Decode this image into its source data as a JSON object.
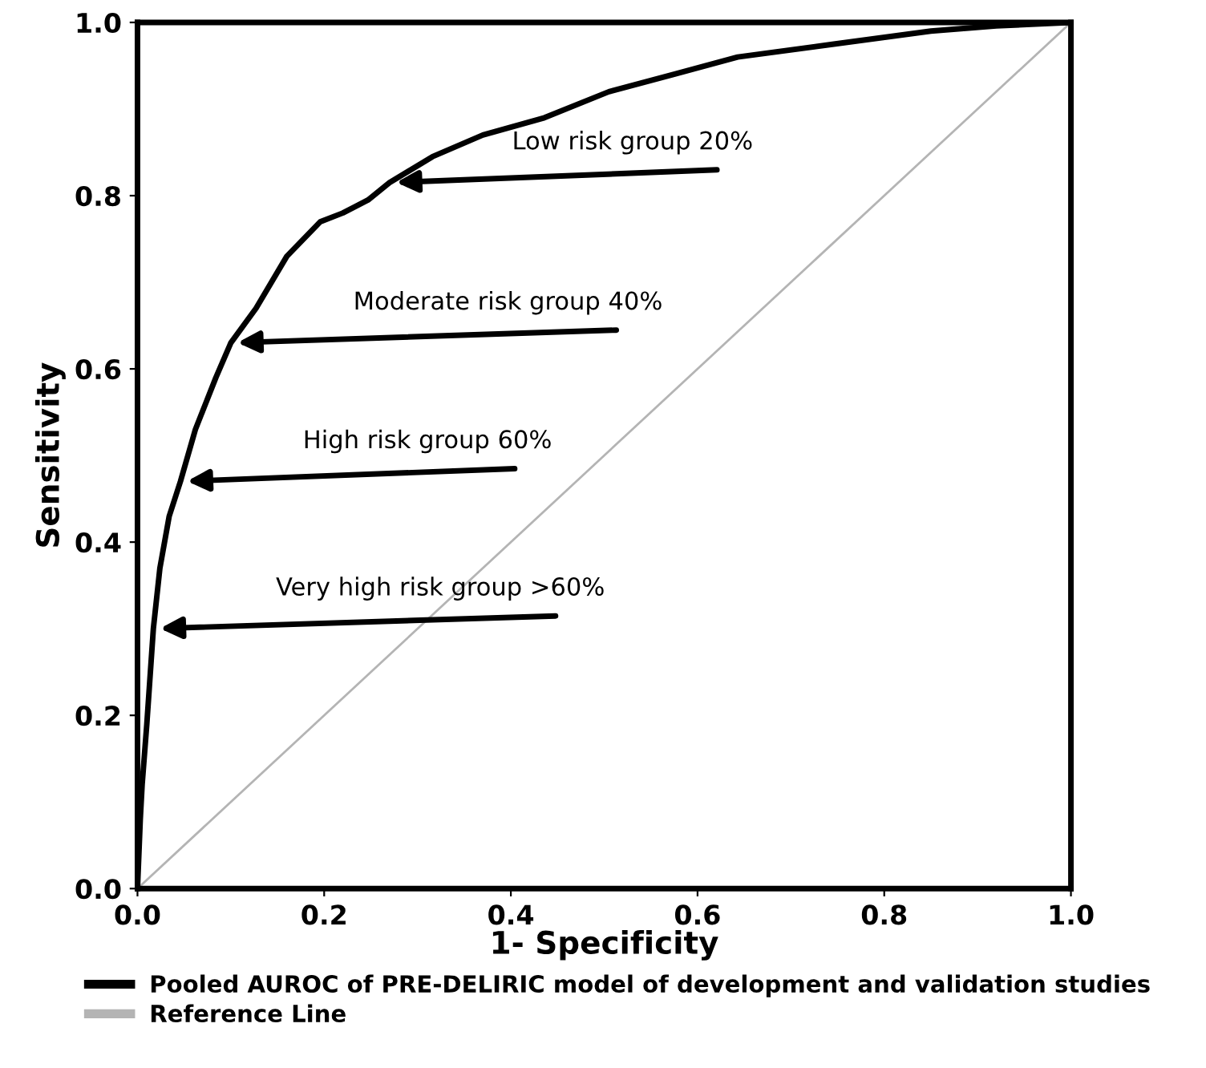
{
  "chart_data": {
    "type": "line",
    "xlabel": "1- Specificity",
    "ylabel": "Sensitivity",
    "xlim": [
      0,
      1
    ],
    "ylim": [
      0,
      1
    ],
    "xticks": [
      {
        "value": 0,
        "label": "0.0"
      },
      0.2,
      0.4,
      0.6,
      0.8,
      {
        "value": 1,
        "label": "1.0"
      }
    ],
    "yticks": [
      {
        "value": 0,
        "label": "0.0"
      },
      0.2,
      0.4,
      0.6,
      0.8,
      {
        "value": 1,
        "label": "1.0"
      }
    ],
    "grid": false,
    "legend": "bottom",
    "marker": "none",
    "line_style": "solid",
    "series": [
      {
        "name": "Pooled AUROC of PRE-DELIRIC model of development and validation studies",
        "color": "#000000",
        "x": [
          0,
          0.003,
          0.005,
          0.01,
          0.017,
          0.024,
          0.034,
          0.046,
          0.062,
          0.084,
          0.1,
          0.127,
          0.16,
          0.196,
          0.22,
          0.247,
          0.27,
          0.316,
          0.37,
          0.436,
          0.505,
          0.574,
          0.643,
          0.746,
          0.85,
          0.92,
          1
        ],
        "values": [
          0,
          0.08,
          0.12,
          0.19,
          0.3,
          0.37,
          0.43,
          0.47,
          0.53,
          0.59,
          0.63,
          0.67,
          0.73,
          0.77,
          0.78,
          0.795,
          0.815,
          0.845,
          0.87,
          0.89,
          0.92,
          0.94,
          0.96,
          0.975,
          0.99,
          0.996,
          1
        ]
      },
      {
        "name": "Reference Line",
        "color": "#b4b4b4",
        "x": [
          0,
          1
        ],
        "values": [
          0,
          1
        ]
      }
    ],
    "annotations": [
      {
        "text": "Low risk group 20%",
        "x": 0.27,
        "y": 0.815
      },
      {
        "text": "Moderate risk group 40%",
        "x": 0.1,
        "y": 0.63
      },
      {
        "text": "High risk group 60%",
        "x": 0.046,
        "y": 0.47
      },
      {
        "text": "Very high risk group >60%",
        "x": 0.017,
        "y": 0.3
      }
    ]
  }
}
